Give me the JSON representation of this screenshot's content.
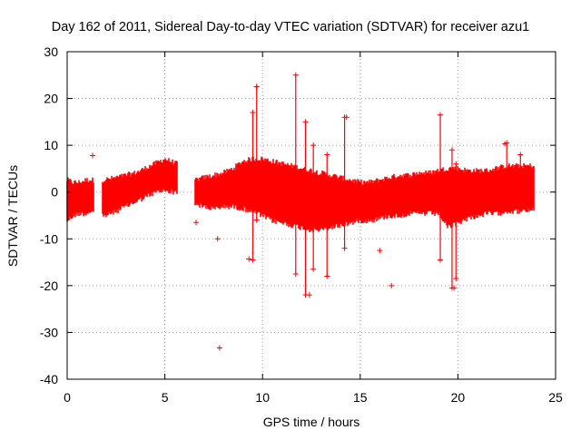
{
  "chart_data": {
    "type": "scatter",
    "title": "Day 162 of 2011, Sidereal Day-to-day VTEC variation (SDTVAR) for receiver azu1",
    "xlabel": "GPS time / hours",
    "ylabel": "SDTVAR / TECUs",
    "xlim": [
      0,
      25
    ],
    "ylim": [
      -40,
      30
    ],
    "xticks": [
      0,
      5,
      10,
      15,
      20,
      25
    ],
    "yticks": [
      -40,
      -30,
      -20,
      -10,
      0,
      10,
      20,
      30
    ],
    "xtick_labels": [
      "0",
      "5",
      "10",
      "15",
      "20",
      "25"
    ],
    "ytick_labels": [
      "-40",
      "-30",
      "-20",
      "-10",
      "0",
      "10",
      "20",
      "30"
    ],
    "grid": true,
    "marker": "plus",
    "color": "#ff0000",
    "series": [
      {
        "name": "SDTVAR",
        "band": {
          "x": [
            0.0,
            0.3,
            0.6,
            1.0,
            1.2,
            1.9,
            2.5,
            3.0,
            3.5,
            4.0,
            4.5,
            5.0,
            5.6,
            6.6,
            7.0,
            7.5,
            8.0,
            8.5,
            9.0,
            9.5,
            10.0,
            10.5,
            11.0,
            11.5,
            12.0,
            12.5,
            13.0,
            13.5,
            14.0,
            14.5,
            15.0,
            15.5,
            16.0,
            16.5,
            17.0,
            17.5,
            18.0,
            18.5,
            19.0,
            19.5,
            20.0,
            20.5,
            21.0,
            21.5,
            22.0,
            22.5,
            23.0,
            23.5,
            23.9
          ],
          "low": [
            -5.5,
            -4.5,
            -4.0,
            -4.0,
            -3.5,
            -4.5,
            -3.5,
            -2.5,
            -1.5,
            -0.5,
            0.5,
            1.0,
            0.5,
            -2.0,
            -2.5,
            -3.0,
            -2.5,
            -2.5,
            -3.0,
            -3.5,
            -4.5,
            -5.5,
            -6.0,
            -6.5,
            -7.0,
            -7.5,
            -7.5,
            -7.0,
            -6.5,
            -6.0,
            -5.5,
            -5.5,
            -5.0,
            -4.5,
            -4.5,
            -4.0,
            -4.0,
            -4.0,
            -4.0,
            -7.0,
            -6.0,
            -5.0,
            -4.5,
            -4.0,
            -4.0,
            -3.5,
            -3.5,
            -3.5,
            -3.0
          ],
          "high": [
            2.0,
            1.5,
            1.5,
            2.0,
            2.0,
            2.0,
            2.5,
            3.0,
            3.5,
            4.5,
            5.5,
            6.5,
            5.5,
            2.0,
            2.5,
            3.0,
            3.5,
            4.5,
            6.0,
            6.5,
            6.5,
            6.0,
            5.5,
            5.0,
            4.5,
            4.0,
            3.5,
            3.0,
            2.5,
            2.0,
            1.5,
            1.5,
            2.0,
            2.5,
            3.0,
            3.0,
            3.5,
            3.5,
            4.0,
            4.5,
            4.5,
            4.0,
            4.0,
            4.0,
            4.5,
            5.0,
            5.0,
            5.0,
            5.0
          ]
        },
        "gaps": [
          [
            1.35,
            1.8
          ],
          [
            5.65,
            6.55
          ]
        ],
        "spikes": [
          [
            9.5,
            -14.5,
            17.0
          ],
          [
            9.7,
            -6.0,
            22.5
          ],
          [
            11.7,
            -17.5,
            25.0
          ],
          [
            12.2,
            -22.0,
            15.0
          ],
          [
            12.6,
            -16.5,
            10.0
          ],
          [
            13.3,
            -18.0,
            8.0
          ],
          [
            14.2,
            -12.0,
            16.0
          ],
          [
            19.1,
            -14.5,
            16.5
          ],
          [
            19.7,
            -20.5,
            9.0
          ],
          [
            19.9,
            -18.5,
            6.0
          ],
          [
            22.5,
            -3.5,
            10.5
          ],
          [
            23.2,
            -3.0,
            8.0
          ]
        ],
        "outliers": [
          [
            7.8,
            -33.3
          ],
          [
            9.3,
            -14.3
          ],
          [
            9.7,
            22.5
          ],
          [
            16.6,
            -20.0
          ],
          [
            14.3,
            16.0
          ],
          [
            16.0,
            -12.5
          ],
          [
            6.6,
            -6.5
          ],
          [
            1.3,
            7.8
          ],
          [
            12.4,
            -22.0
          ],
          [
            19.8,
            -20.5
          ],
          [
            22.4,
            10.3
          ],
          [
            7.7,
            -10.0
          ]
        ]
      }
    ]
  }
}
